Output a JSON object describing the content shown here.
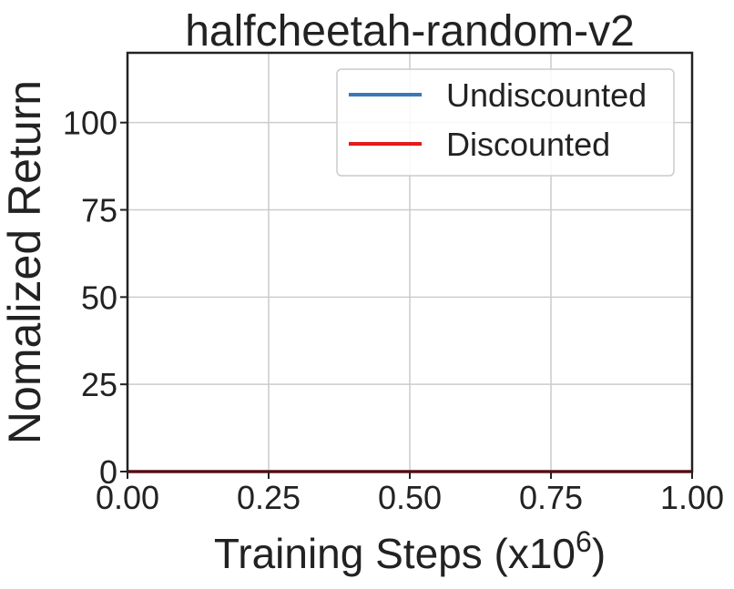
{
  "chart_data": {
    "type": "line",
    "title": "halfcheetah-random-v2",
    "xlabel": "Training Steps (x10",
    "xlabel_exponent": "6",
    "xlabel_suffix": ")",
    "ylabel": "Nomalized Return",
    "xlim": [
      0.0,
      1.0
    ],
    "ylim": [
      0,
      120
    ],
    "xticks": [
      "0.00",
      "0.25",
      "0.50",
      "0.75",
      "1.00"
    ],
    "xtick_values": [
      0.0,
      0.25,
      0.5,
      0.75,
      1.0
    ],
    "yticks": [
      "0",
      "25",
      "50",
      "75",
      "100"
    ],
    "ytick_values": [
      0,
      25,
      50,
      75,
      100
    ],
    "grid": true,
    "legend_placement": "top-right",
    "series": [
      {
        "name": "Undiscounted",
        "color": "#3a78b8",
        "x": [
          0.0,
          1.0
        ],
        "y": [
          0,
          0
        ]
      },
      {
        "name": "Discounted",
        "color": "#e41a1c",
        "x": [
          0.0,
          1.0
        ],
        "y": [
          0,
          0
        ]
      }
    ]
  }
}
